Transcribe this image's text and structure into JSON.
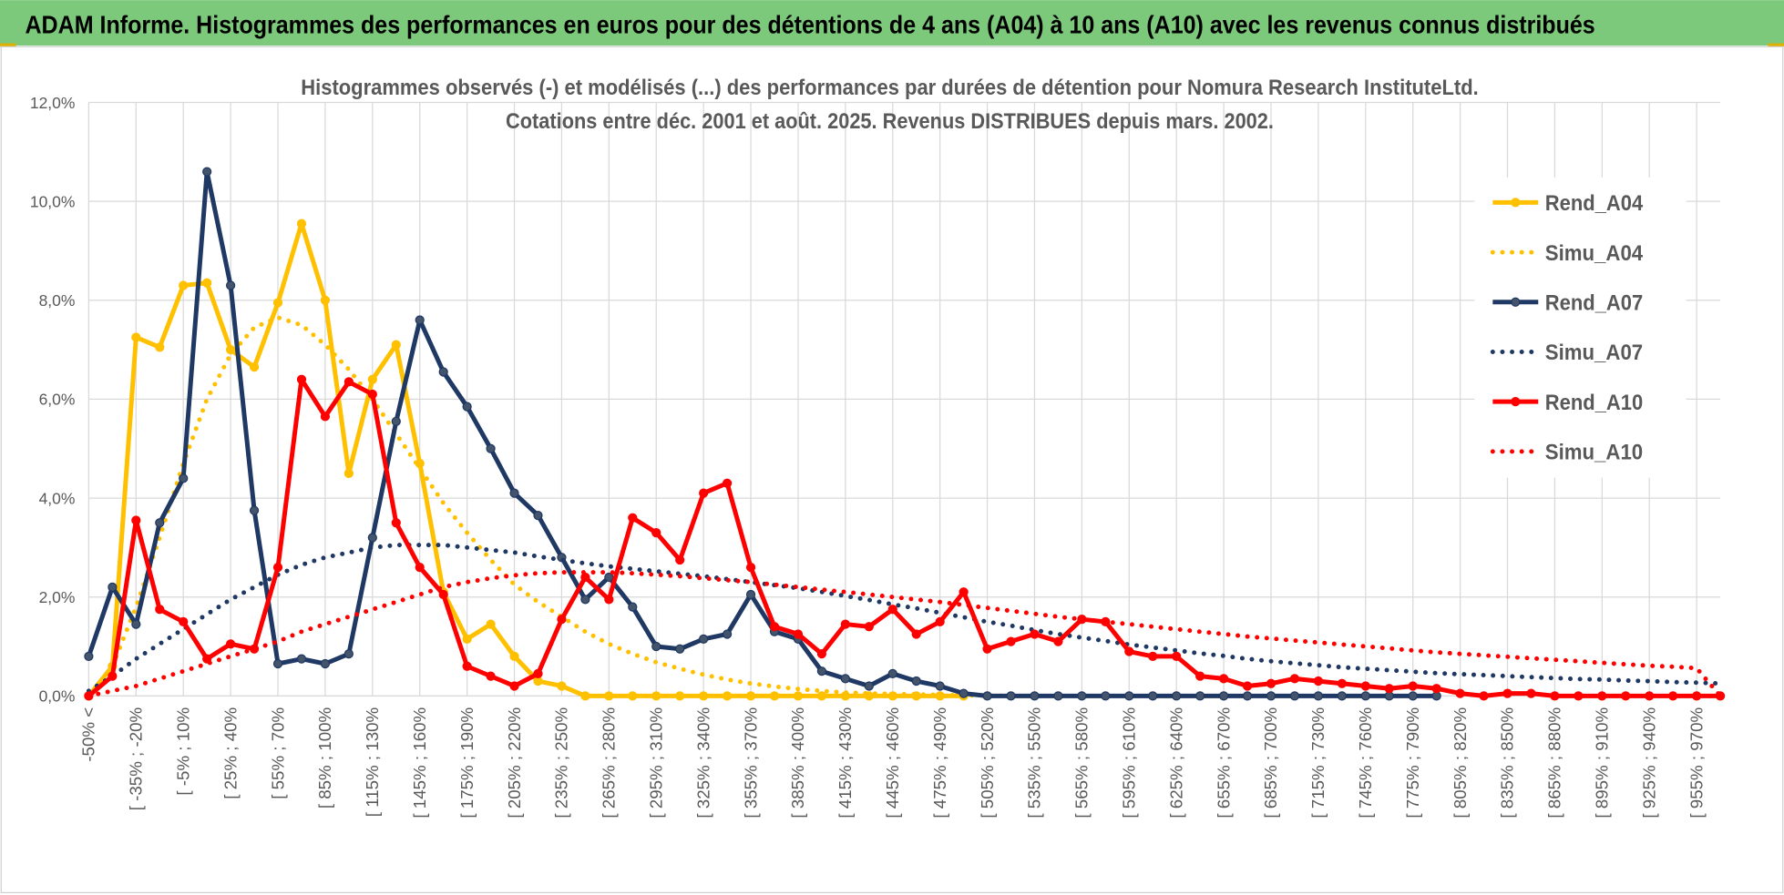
{
  "header": {
    "title": "ADAM Informe. Histogrammes des performances en euros pour des détentions de 4 ans (A04) à 10 ans (A10) avec les revenus connus distribués"
  },
  "chart_data": {
    "type": "line",
    "title": "Histogrammes observés (-) et modélisés (...)  des performances par durées de détention pour Nomura Research InstituteLtd.",
    "subtitle": "Cotations entre déc. 2001 et août. 2025.  Revenus DISTRIBUES depuis mars. 2002.",
    "categories": [
      "-50% <",
      null,
      "[ -35% ; -20%",
      null,
      "[ -5% ; 10%",
      null,
      "[ 25% ; 40%",
      null,
      "[ 55% ; 70%",
      null,
      "[ 85% ; 100%",
      null,
      "[ 115% ; 130%",
      null,
      "[ 145% ; 160%",
      null,
      "[ 175% ; 190%",
      null,
      "[ 205% ; 220%",
      null,
      "[ 235% ; 250%",
      null,
      "[ 265% ; 280%",
      null,
      "[ 295% ; 310%",
      null,
      "[ 325% ; 340%",
      null,
      "[ 355% ; 370%",
      null,
      "[ 385% ; 400%",
      null,
      "[ 415% ; 430%",
      null,
      "[ 445% ; 460%",
      null,
      "[ 475% ; 490%",
      null,
      "[ 505% ; 520%",
      null,
      "[ 535% ; 550%",
      null,
      "[ 565% ; 580%",
      null,
      "[ 595% ; 610%",
      null,
      "[ 625% ; 640%",
      null,
      "[ 655% ; 670%",
      null,
      "[ 685% ; 700%",
      null,
      "[ 715% ; 730%",
      null,
      "[ 745% ; 760%",
      null,
      "[ 775% ; 790%",
      null,
      "[ 805% ; 820%",
      null,
      "[ 835% ; 850%",
      null,
      "[ 865% ; 880%",
      null,
      "[ 895% ; 910%",
      null,
      "[ 925% ; 940%",
      null,
      "[ 955% ; 970%",
      null
    ],
    "ylim": [
      0,
      12
    ],
    "yticks": [
      {
        "value": 0,
        "label": "0,0%"
      },
      {
        "value": 2,
        "label": "2,0%"
      },
      {
        "value": 4,
        "label": "4,0%"
      },
      {
        "value": 6,
        "label": "6,0%"
      },
      {
        "value": 8,
        "label": "8,0%"
      },
      {
        "value": 10,
        "label": "10,0%"
      },
      {
        "value": 12,
        "label": "12,0%"
      }
    ],
    "grid": true,
    "legend": "right",
    "series": [
      {
        "name": "Rend_A04",
        "color": "#ffc000",
        "dash": "solid",
        "markers": true,
        "values": [
          0,
          0.6,
          7.25,
          7.05,
          8.3,
          8.35,
          7.0,
          6.65,
          7.95,
          9.55,
          8.0,
          4.5,
          6.4,
          7.1,
          4.7,
          2.1,
          1.15,
          1.45,
          0.8,
          0.3,
          0.2,
          0,
          0,
          0,
          0,
          0,
          0,
          0,
          0,
          0,
          0,
          0,
          0,
          0,
          0,
          0,
          0,
          0,
          null,
          null,
          null,
          null,
          null,
          null,
          null,
          null,
          null,
          null,
          null,
          null,
          null,
          null,
          null,
          null,
          null,
          null,
          null,
          null,
          null,
          null,
          null,
          null,
          null,
          null,
          null,
          null,
          null,
          null,
          null,
          null
        ]
      },
      {
        "name": "Simu_A04",
        "color": "#ffc000",
        "dash": "dotted",
        "markers": false,
        "values": [
          0,
          0.6,
          1.8,
          3.2,
          4.7,
          6.0,
          6.9,
          7.45,
          7.65,
          7.5,
          7.1,
          6.6,
          6.0,
          5.3,
          4.6,
          3.9,
          3.3,
          2.75,
          2.25,
          1.9,
          1.6,
          1.3,
          1.05,
          0.85,
          0.68,
          0.55,
          0.43,
          0.33,
          0.25,
          0.19,
          0.14,
          0.1,
          0.07,
          0.05,
          0.04,
          0.03,
          0.02,
          0.01,
          0.01,
          0,
          null,
          null,
          null,
          null,
          null,
          null,
          null,
          null,
          null,
          null,
          null,
          null,
          null,
          null,
          null,
          null,
          null,
          null,
          null,
          null,
          null,
          null,
          null,
          null,
          null,
          null,
          null,
          null,
          null,
          null
        ]
      },
      {
        "name": "Rend_A07",
        "color": "#1f3864",
        "dash": "solid",
        "markers": true,
        "values": [
          0.8,
          2.2,
          1.45,
          3.5,
          4.4,
          10.6,
          8.3,
          3.75,
          0.65,
          0.75,
          0.65,
          0.85,
          3.2,
          5.55,
          7.6,
          6.55,
          5.85,
          5.0,
          4.1,
          3.65,
          2.8,
          1.95,
          2.4,
          1.8,
          1.0,
          0.95,
          1.15,
          1.25,
          2.05,
          1.3,
          1.15,
          0.5,
          0.35,
          0.2,
          0.45,
          0.3,
          0.2,
          0.05,
          0,
          0,
          0,
          0,
          0,
          0,
          0,
          0,
          0,
          0,
          0,
          0,
          0,
          0,
          0,
          0,
          0,
          0,
          0,
          0,
          null,
          null,
          null,
          null,
          null,
          null,
          null,
          null,
          null,
          null,
          null,
          null
        ]
      },
      {
        "name": "Simu_A07",
        "color": "#1f3864",
        "dash": "dotted",
        "markers": false,
        "values": [
          0.1,
          0.4,
          0.75,
          1.05,
          1.35,
          1.65,
          1.95,
          2.2,
          2.45,
          2.65,
          2.8,
          2.9,
          3.0,
          3.05,
          3.05,
          3.05,
          3.0,
          2.95,
          2.9,
          2.82,
          2.75,
          2.68,
          2.62,
          2.57,
          2.52,
          2.47,
          2.42,
          2.36,
          2.3,
          2.24,
          2.18,
          2.1,
          2.02,
          1.94,
          1.85,
          1.77,
          1.68,
          1.59,
          1.5,
          1.42,
          1.33,
          1.25,
          1.18,
          1.11,
          1.04,
          0.98,
          0.92,
          0.86,
          0.81,
          0.75,
          0.7,
          0.66,
          0.62,
          0.58,
          0.55,
          0.52,
          0.49,
          0.46,
          0.44,
          0.42,
          0.4,
          0.38,
          0.36,
          0.34,
          0.33,
          0.31,
          0.3,
          0.28,
          0.27,
          0.25
        ]
      },
      {
        "name": "Rend_A10",
        "color": "#ff0000",
        "dash": "solid",
        "markers": true,
        "values": [
          0,
          0.4,
          3.55,
          1.75,
          1.5,
          0.75,
          1.05,
          0.95,
          2.6,
          6.4,
          5.65,
          6.35,
          6.1,
          3.5,
          2.6,
          2.05,
          0.6,
          0.4,
          0.2,
          0.45,
          1.55,
          2.4,
          1.95,
          3.6,
          3.3,
          2.75,
          4.1,
          4.3,
          2.6,
          1.4,
          1.25,
          0.85,
          1.45,
          1.4,
          1.75,
          1.25,
          1.5,
          2.1,
          0.95,
          1.1,
          1.25,
          1.1,
          1.55,
          1.5,
          0.9,
          0.8,
          0.8,
          0.4,
          0.35,
          0.2,
          0.25,
          0.35,
          0.3,
          0.25,
          0.2,
          0.15,
          0.2,
          0.15,
          0.05,
          0,
          0.05,
          0.05,
          0,
          0,
          0,
          0,
          0,
          0,
          0,
          0
        ]
      },
      {
        "name": "Simu_A10",
        "color": "#ff0000",
        "dash": "dotted",
        "markers": false,
        "values": [
          0,
          0.1,
          0.2,
          0.35,
          0.5,
          0.65,
          0.8,
          0.95,
          1.1,
          1.3,
          1.45,
          1.6,
          1.75,
          1.9,
          2.05,
          2.2,
          2.3,
          2.38,
          2.44,
          2.48,
          2.5,
          2.5,
          2.5,
          2.48,
          2.45,
          2.42,
          2.38,
          2.34,
          2.3,
          2.25,
          2.2,
          2.15,
          2.1,
          2.05,
          2.0,
          1.95,
          1.9,
          1.84,
          1.78,
          1.72,
          1.66,
          1.6,
          1.55,
          1.5,
          1.45,
          1.4,
          1.35,
          1.3,
          1.25,
          1.2,
          1.16,
          1.12,
          1.08,
          1.04,
          1.0,
          0.96,
          0.92,
          0.88,
          0.85,
          0.82,
          0.79,
          0.76,
          0.73,
          0.7,
          0.67,
          0.64,
          0.61,
          0.59,
          0.56,
          0
        ]
      }
    ]
  }
}
